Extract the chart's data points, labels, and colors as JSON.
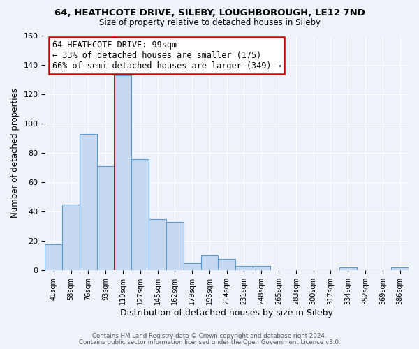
{
  "title": "64, HEATHCOTE DRIVE, SILEBY, LOUGHBOROUGH, LE12 7ND",
  "subtitle": "Size of property relative to detached houses in Sileby",
  "xlabel": "Distribution of detached houses by size in Sileby",
  "ylabel": "Number of detached properties",
  "bin_labels": [
    "41sqm",
    "58sqm",
    "76sqm",
    "93sqm",
    "110sqm",
    "127sqm",
    "145sqm",
    "162sqm",
    "179sqm",
    "196sqm",
    "214sqm",
    "231sqm",
    "248sqm",
    "265sqm",
    "283sqm",
    "300sqm",
    "317sqm",
    "334sqm",
    "352sqm",
    "369sqm",
    "386sqm"
  ],
  "bin_values": [
    18,
    45,
    93,
    71,
    133,
    76,
    35,
    33,
    5,
    10,
    8,
    3,
    3,
    0,
    0,
    0,
    0,
    2,
    0,
    0,
    2
  ],
  "bar_color": "#c5d8f0",
  "bar_edge_color": "#5b9bd5",
  "ylim": [
    0,
    160
  ],
  "yticks": [
    0,
    20,
    40,
    60,
    80,
    100,
    120,
    140,
    160
  ],
  "vline_color": "#8b0000",
  "annotation_title": "64 HEATHCOTE DRIVE: 99sqm",
  "annotation_line1": "← 33% of detached houses are smaller (175)",
  "annotation_line2": "66% of semi-detached houses are larger (349) →",
  "annotation_box_color": "#ffffff",
  "annotation_box_edge": "#cc0000",
  "footer1": "Contains HM Land Registry data © Crown copyright and database right 2024.",
  "footer2": "Contains public sector information licensed under the Open Government Licence v3.0.",
  "background_color": "#eef2fb"
}
